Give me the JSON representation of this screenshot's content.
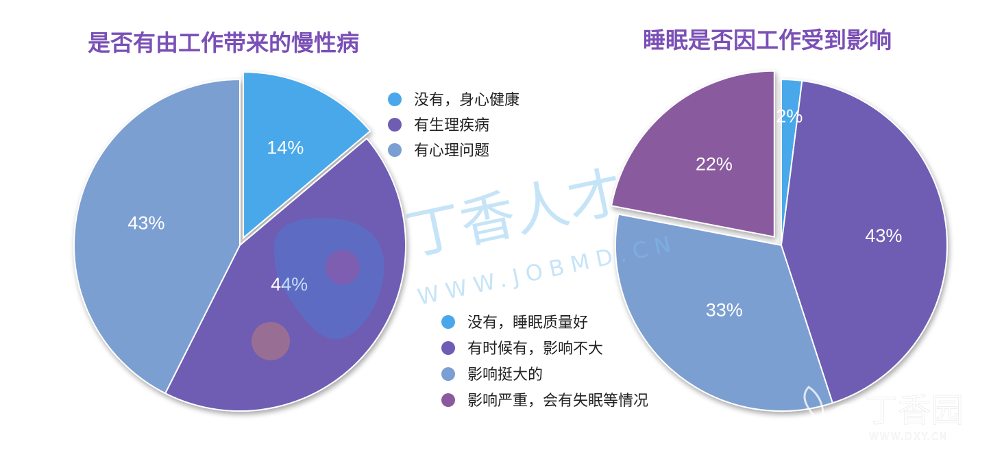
{
  "chart_data": [
    {
      "type": "pie",
      "title": "是否有由工作带来的慢性病",
      "slices": [
        {
          "label": "没有，身心健康",
          "value": 14,
          "display": "14%",
          "color": "#4aa8ea"
        },
        {
          "label": "有生理疾病",
          "value": 44,
          "display": "44%",
          "color": "#6e5db3"
        },
        {
          "label": "有心理问题",
          "value": 43,
          "display": "43%",
          "color": "#7b9fd2"
        }
      ],
      "exploded_slice_index": 0,
      "legend_position": "top-right"
    },
    {
      "type": "pie",
      "title": "睡眠是否因工作受到影响",
      "slices": [
        {
          "label": "没有，睡眠质量好",
          "value": 2,
          "display": "2%",
          "color": "#4aa8ea"
        },
        {
          "label": "有时候有，影响不大",
          "value": 43,
          "display": "43%",
          "color": "#6e5db3"
        },
        {
          "label": "影响挺大的",
          "value": 33,
          "display": "33%",
          "color": "#7b9fd2"
        },
        {
          "label": "影响严重，会有失眠等情况",
          "value": 22,
          "display": "22%",
          "color": "#8a5a9f"
        }
      ],
      "exploded_slice_index": 3,
      "legend_position": "bottom-left"
    }
  ],
  "watermarks": {
    "center_main": "丁香人才",
    "center_url": "WWW.JOBMD.CN",
    "corner_main": "丁香园",
    "corner_url": "WWW.DXY.CN"
  }
}
